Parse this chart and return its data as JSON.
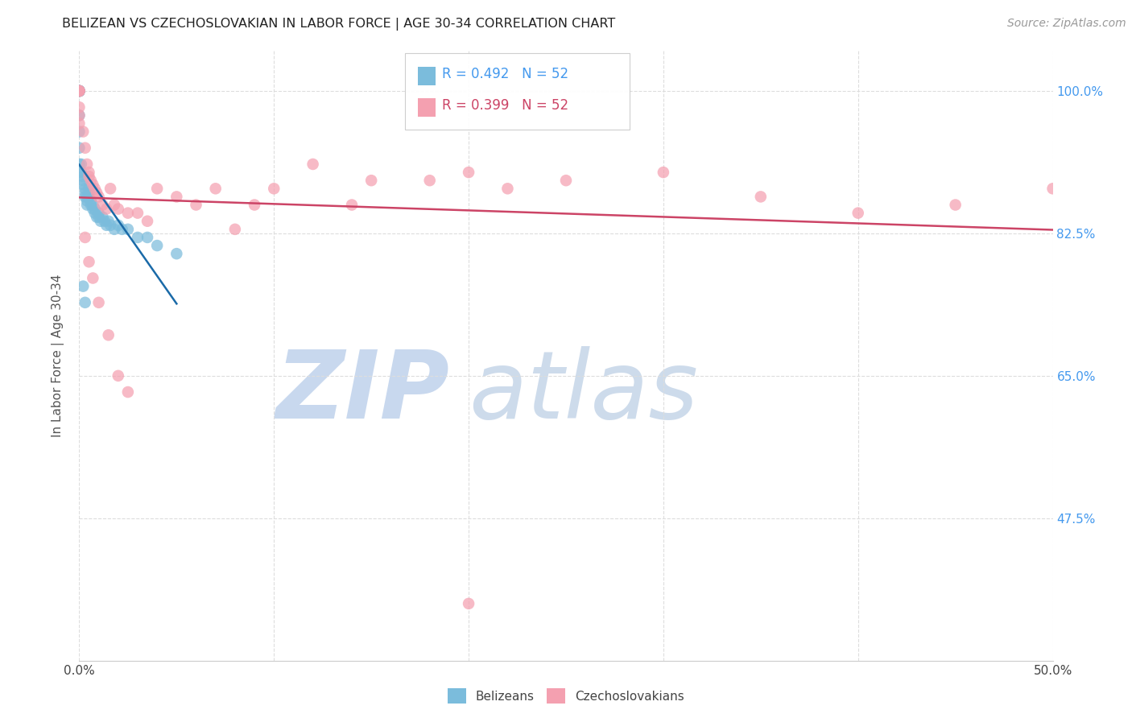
{
  "title": "BELIZEAN VS CZECHOSLOVAKIAN IN LABOR FORCE | AGE 30-34 CORRELATION CHART",
  "source": "Source: ZipAtlas.com",
  "ylabel": "In Labor Force | Age 30-34",
  "xlim": [
    0.0,
    0.5
  ],
  "ylim": [
    0.3,
    1.05
  ],
  "r_belizean": 0.492,
  "n_belizean": 52,
  "r_czechoslovakian": 0.399,
  "n_czechoslovakian": 52,
  "belizean_color": "#7bbcdc",
  "czechoslovakian_color": "#f4a0b0",
  "belizean_line_color": "#1a6aa8",
  "czechoslovakian_line_color": "#cc4466",
  "grid_color": "#dddddd",
  "background_color": "#ffffff",
  "watermark_zip_color": "#c8d8ee",
  "watermark_atlas_color": "#c5d5e8",
  "title_color": "#222222",
  "right_tick_color": "#4499ee",
  "ytick_vals": [
    0.475,
    0.65,
    0.825,
    1.0
  ],
  "ytick_labels": [
    "47.5%",
    "65.0%",
    "82.5%",
    "100.0%"
  ],
  "xtick_vals": [
    0.0,
    0.1,
    0.2,
    0.3,
    0.4,
    0.5
  ],
  "xtick_labels": [
    "0.0%",
    "",
    "",
    "",
    "",
    "50.0%"
  ],
  "belizean_x": [
    0.0,
    0.0,
    0.0,
    0.0,
    0.0,
    0.0,
    0.0,
    0.0,
    0.0,
    0.0,
    0.0,
    0.0,
    0.0,
    0.001,
    0.001,
    0.002,
    0.002,
    0.002,
    0.003,
    0.003,
    0.003,
    0.004,
    0.004,
    0.004,
    0.005,
    0.005,
    0.005,
    0.006,
    0.006,
    0.007,
    0.007,
    0.008,
    0.008,
    0.009,
    0.01,
    0.01,
    0.011,
    0.012,
    0.013,
    0.014,
    0.015,
    0.016,
    0.018,
    0.02,
    0.022,
    0.025,
    0.03,
    0.035,
    0.04,
    0.05,
    0.002,
    0.003
  ],
  "belizean_y": [
    1.0,
    1.0,
    1.0,
    1.0,
    1.0,
    1.0,
    1.0,
    1.0,
    0.97,
    0.95,
    0.93,
    0.91,
    0.9,
    0.91,
    0.9,
    0.895,
    0.89,
    0.885,
    0.88,
    0.875,
    0.87,
    0.87,
    0.865,
    0.86,
    0.88,
    0.875,
    0.87,
    0.865,
    0.86,
    0.86,
    0.855,
    0.855,
    0.85,
    0.845,
    0.85,
    0.845,
    0.84,
    0.845,
    0.84,
    0.835,
    0.84,
    0.835,
    0.83,
    0.835,
    0.83,
    0.83,
    0.82,
    0.82,
    0.81,
    0.8,
    0.76,
    0.74
  ],
  "czechoslovakian_x": [
    0.0,
    0.0,
    0.0,
    0.0,
    0.0,
    0.0,
    0.0,
    0.002,
    0.003,
    0.004,
    0.005,
    0.005,
    0.006,
    0.007,
    0.008,
    0.009,
    0.01,
    0.012,
    0.014,
    0.016,
    0.018,
    0.02,
    0.025,
    0.03,
    0.035,
    0.04,
    0.05,
    0.06,
    0.07,
    0.08,
    0.09,
    0.1,
    0.12,
    0.14,
    0.15,
    0.18,
    0.2,
    0.22,
    0.25,
    0.3,
    0.35,
    0.4,
    0.45,
    0.5,
    0.003,
    0.005,
    0.007,
    0.01,
    0.015,
    0.02,
    0.025,
    0.2
  ],
  "czechoslovakian_y": [
    1.0,
    1.0,
    1.0,
    1.0,
    0.98,
    0.97,
    0.96,
    0.95,
    0.93,
    0.91,
    0.9,
    0.895,
    0.89,
    0.885,
    0.88,
    0.875,
    0.87,
    0.86,
    0.855,
    0.88,
    0.86,
    0.855,
    0.85,
    0.85,
    0.84,
    0.88,
    0.87,
    0.86,
    0.88,
    0.83,
    0.86,
    0.88,
    0.91,
    0.86,
    0.89,
    0.89,
    0.9,
    0.88,
    0.89,
    0.9,
    0.87,
    0.85,
    0.86,
    0.88,
    0.82,
    0.79,
    0.77,
    0.74,
    0.7,
    0.65,
    0.63,
    0.37
  ]
}
